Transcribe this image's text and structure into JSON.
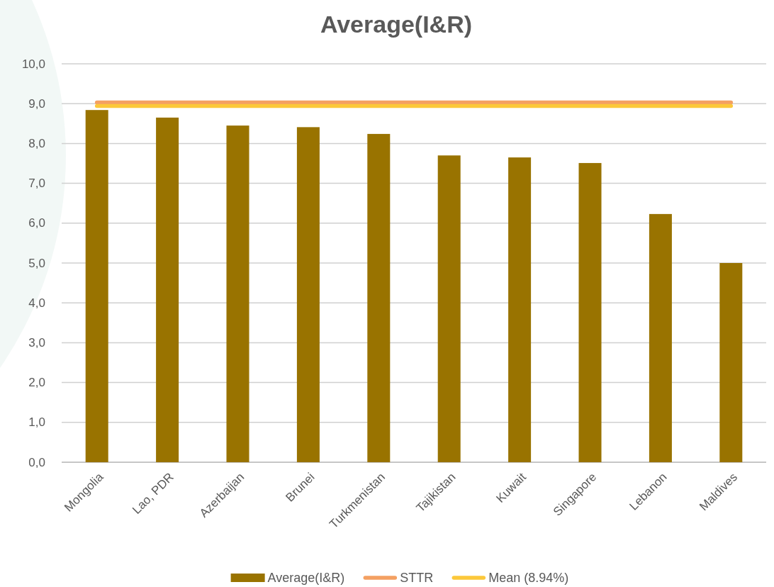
{
  "chart_data": {
    "type": "bar",
    "title": "Average(I&R)",
    "categories": [
      "Mongolia",
      "Lao, PDR",
      "Azerbaijan",
      "Brunei",
      "Turkmenistan",
      "Tajikistan",
      "Kuwait",
      "Singapore",
      "Lebanon",
      "Maldives"
    ],
    "series": [
      {
        "name": "Average(I&R)",
        "color": "#997300",
        "values": [
          8.84,
          8.65,
          8.45,
          8.41,
          8.24,
          7.7,
          7.65,
          7.51,
          6.23,
          5.0
        ]
      },
      {
        "name": "STTR",
        "type": "line",
        "color": "#f4a062",
        "values": [
          9.03,
          9.03,
          9.03,
          9.03,
          9.03,
          9.03,
          9.03,
          9.03,
          9.03,
          9.03
        ]
      },
      {
        "name": "Mean (8.94%)",
        "type": "line",
        "color": "#fcc83a",
        "values": [
          8.94,
          8.94,
          8.94,
          8.94,
          8.94,
          8.94,
          8.94,
          8.94,
          8.94,
          8.94
        ]
      }
    ],
    "ylim": [
      0,
      10
    ],
    "yticks": [
      {
        "value": 0,
        "label": "0,0"
      },
      {
        "value": 1,
        "label": "1,0"
      },
      {
        "value": 2,
        "label": "2,0"
      },
      {
        "value": 3,
        "label": "3,0"
      },
      {
        "value": 4,
        "label": "4,0"
      },
      {
        "value": 5,
        "label": "5,0"
      },
      {
        "value": 6,
        "label": "6,0"
      },
      {
        "value": 7,
        "label": "7,0"
      },
      {
        "value": 8,
        "label": "8,0"
      },
      {
        "value": 9,
        "label": "9,0"
      },
      {
        "value": 10,
        "label": "10,0"
      }
    ],
    "grid": "y",
    "legend": "bottom"
  }
}
